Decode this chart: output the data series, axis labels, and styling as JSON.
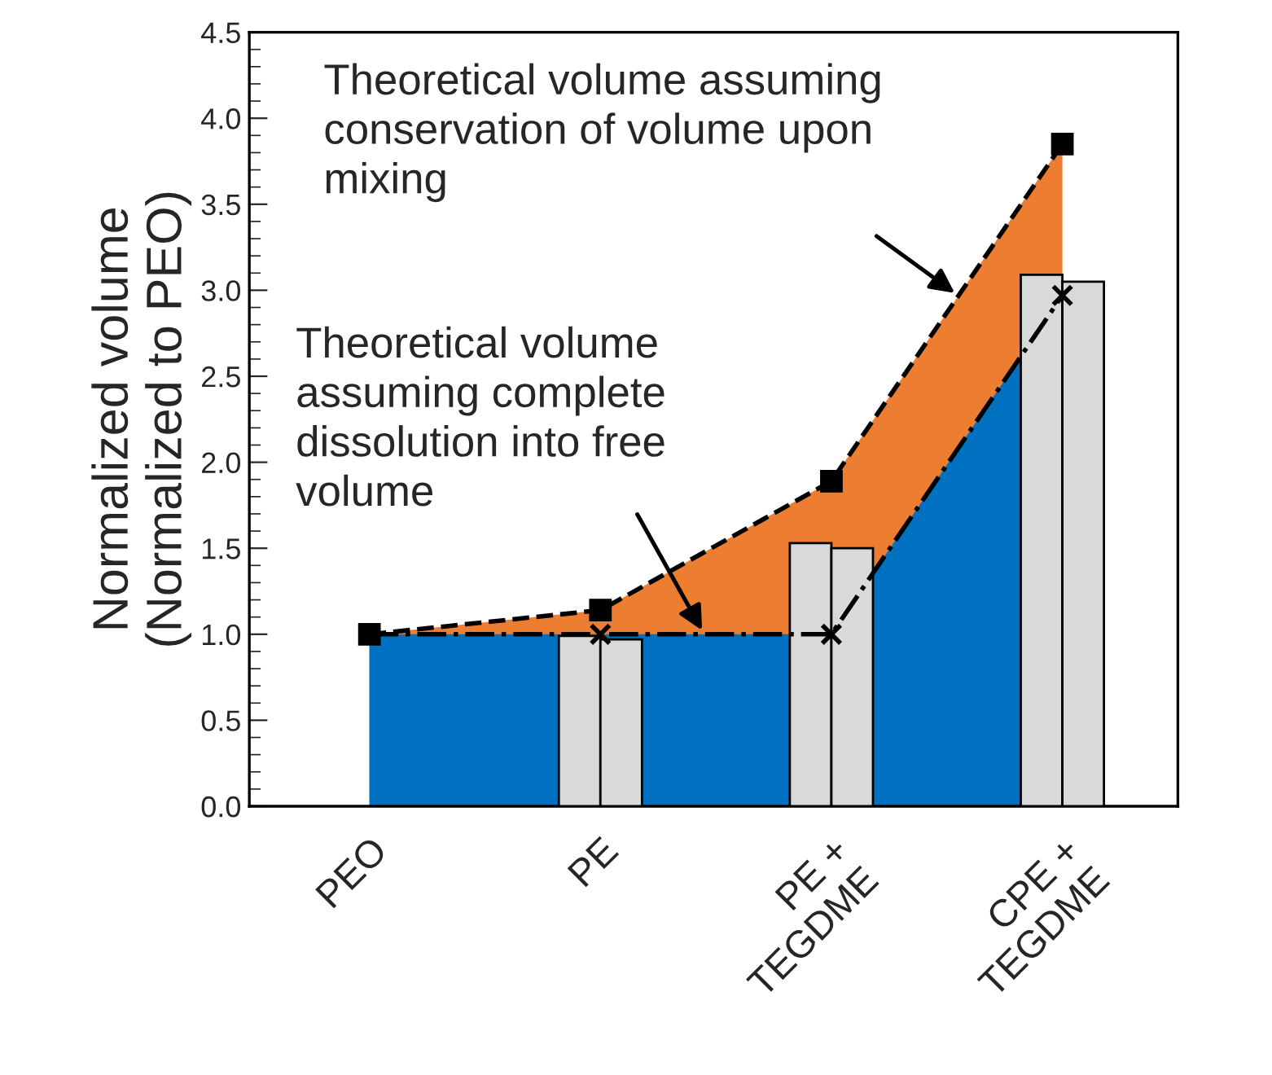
{
  "chart_data": {
    "type": "area",
    "ylabel": "Normalized volume\n(Normalized to PEO)",
    "categories": [
      "PEO",
      "PE",
      "PE +\nTEGDME",
      "CPE +\nTEGDME"
    ],
    "series": [
      {
        "color": "#ed7d31",
        "values": [
          1.0,
          1.14,
          1.89,
          3.85
        ],
        "marker": "square",
        "line_style": "dashed"
      },
      {
        "color": "#0070c0",
        "values": [
          1.0,
          1.0,
          1.0,
          2.97
        ],
        "marker": "cross",
        "line_style": "dashdot"
      },
      {
        "type": "bar",
        "color": "#d9d9d9",
        "values": [
          null,
          0.99,
          1.53,
          3.09
        ]
      },
      {
        "type": "bar",
        "color": "#d9d9d9",
        "values": [
          null,
          0.97,
          1.5,
          3.05
        ]
      }
    ],
    "ylim": [
      0,
      4.5
    ],
    "yticks": [
      {
        "value": 0,
        "label": "0.0"
      },
      {
        "value": 0.5,
        "label": "0.5"
      },
      {
        "value": 1,
        "label": "1.0"
      },
      {
        "value": 1.5,
        "label": "1.5"
      },
      {
        "value": 2,
        "label": "2.0"
      },
      {
        "value": 2.5,
        "label": "2.5"
      },
      {
        "value": 3,
        "label": "3.0"
      },
      {
        "value": 3.5,
        "label": "3.5"
      },
      {
        "value": 4,
        "label": "4.0"
      },
      {
        "value": 4.5,
        "label": "4.5"
      }
    ],
    "annotations": [
      "Theoretical volume assuming\nconservation of volume upon\nmixing",
      "Theoretical volume\nassuming complete\ndissolution into free\nvolume"
    ],
    "grid": false,
    "legend": false
  }
}
